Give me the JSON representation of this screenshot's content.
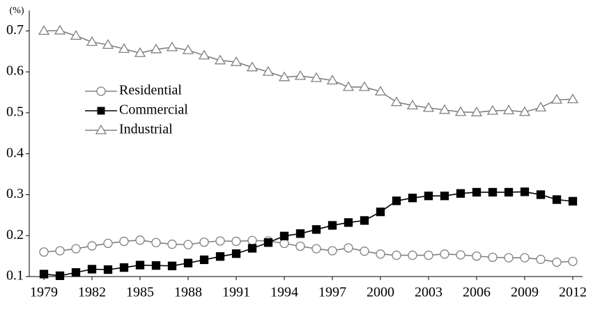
{
  "chart_data": {
    "type": "line",
    "y_label": "(%)",
    "x": [
      1979,
      1980,
      1981,
      1982,
      1983,
      1984,
      1985,
      1986,
      1987,
      1988,
      1989,
      1990,
      1991,
      1992,
      1993,
      1994,
      1995,
      1996,
      1997,
      1998,
      1999,
      2000,
      2001,
      2002,
      2003,
      2004,
      2005,
      2006,
      2007,
      2008,
      2009,
      2010,
      2011,
      2012
    ],
    "xlim": [
      1979,
      2012
    ],
    "xticks": [
      1979,
      1982,
      1985,
      1988,
      1991,
      1994,
      1997,
      2000,
      2003,
      2006,
      2009,
      2012
    ],
    "ylim": [
      0.1,
      0.75
    ],
    "yticks": [
      0.1,
      0.2,
      0.3,
      0.4,
      0.5,
      0.6,
      0.7
    ],
    "grid": false,
    "legend": "left",
    "series": [
      {
        "name": "Residential",
        "color": "#808080",
        "marker": "circle",
        "values": [
          0.16,
          0.163,
          0.168,
          0.175,
          0.181,
          0.186,
          0.189,
          0.183,
          0.179,
          0.178,
          0.184,
          0.187,
          0.186,
          0.188,
          0.187,
          0.181,
          0.174,
          0.168,
          0.163,
          0.17,
          0.162,
          0.155,
          0.152,
          0.152,
          0.152,
          0.155,
          0.153,
          0.15,
          0.147,
          0.146,
          0.146,
          0.142,
          0.135,
          0.137
        ]
      },
      {
        "name": "Commercial",
        "color": "#000000",
        "marker": "square",
        "values": [
          0.106,
          0.102,
          0.11,
          0.118,
          0.117,
          0.122,
          0.128,
          0.127,
          0.126,
          0.133,
          0.141,
          0.149,
          0.156,
          0.169,
          0.183,
          0.199,
          0.205,
          0.215,
          0.225,
          0.232,
          0.237,
          0.258,
          0.285,
          0.292,
          0.297,
          0.297,
          0.303,
          0.306,
          0.306,
          0.306,
          0.307,
          0.3,
          0.288,
          0.284
        ]
      },
      {
        "name": "Industrial",
        "color": "#808080",
        "marker": "triangle",
        "values": [
          0.7,
          0.701,
          0.688,
          0.673,
          0.666,
          0.656,
          0.646,
          0.655,
          0.66,
          0.653,
          0.64,
          0.628,
          0.624,
          0.611,
          0.6,
          0.587,
          0.59,
          0.585,
          0.579,
          0.563,
          0.563,
          0.552,
          0.526,
          0.518,
          0.512,
          0.507,
          0.502,
          0.501,
          0.505,
          0.506,
          0.502,
          0.513,
          0.532,
          0.533
        ]
      }
    ]
  }
}
